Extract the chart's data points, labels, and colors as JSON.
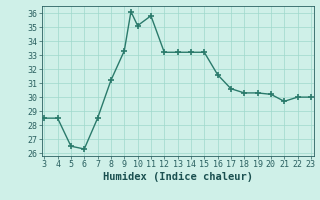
{
  "x": [
    3,
    4,
    5,
    6,
    7,
    8,
    9,
    9.5,
    10,
    11,
    12,
    13,
    14,
    15,
    16,
    17,
    18,
    19,
    20,
    21,
    22,
    23
  ],
  "y": [
    28.5,
    28.5,
    26.5,
    26.3,
    28.5,
    31.2,
    33.3,
    36.1,
    35.1,
    35.8,
    33.2,
    33.2,
    33.2,
    33.2,
    31.6,
    30.6,
    30.3,
    30.3,
    30.2,
    29.7,
    30.0,
    30.0
  ],
  "line_color": "#2a7a6b",
  "marker": "+",
  "marker_size": 4,
  "marker_lw": 1.2,
  "line_width": 1.0,
  "background_color": "#cff0e8",
  "grid_color": "#9fd8cc",
  "xlabel": "Humidex (Indice chaleur)",
  "ylim": [
    25.8,
    36.5
  ],
  "xlim": [
    2.8,
    23.2
  ],
  "yticks": [
    26,
    27,
    28,
    29,
    30,
    31,
    32,
    33,
    34,
    35,
    36
  ],
  "xticks": [
    3,
    4,
    5,
    6,
    7,
    8,
    9,
    10,
    11,
    12,
    13,
    14,
    15,
    16,
    17,
    18,
    19,
    20,
    21,
    22,
    23
  ],
  "tick_color": "#2a6060",
  "label_color": "#1a5050",
  "tick_fontsize": 6,
  "xlabel_fontsize": 7.5
}
